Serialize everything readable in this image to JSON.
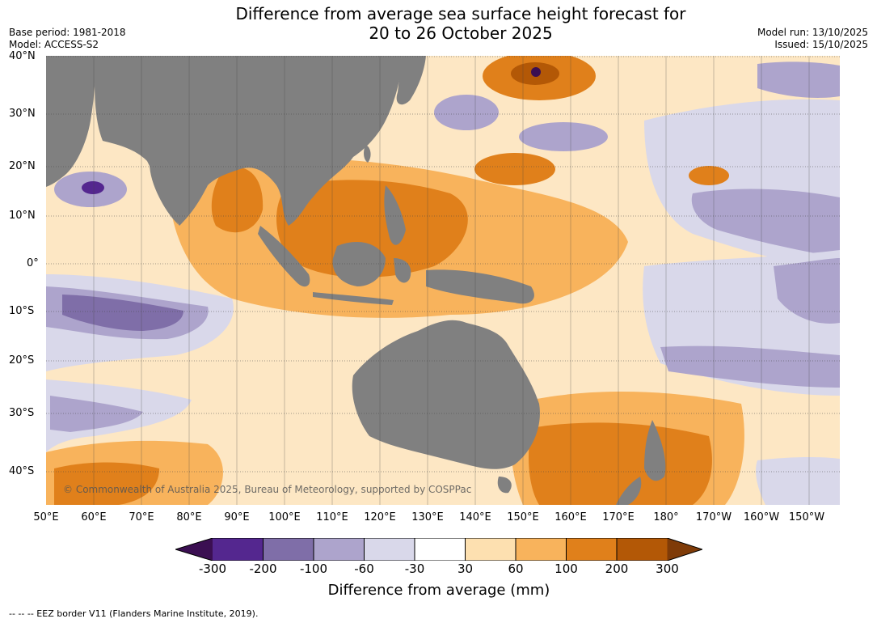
{
  "header": {
    "title_line1": "Difference from average sea surface height forecast for",
    "title_line2": "20 to 26 October 2025",
    "base_period": "Base period: 1981-2018",
    "model": "Model: ACCESS-S2",
    "model_run": "Model run: 13/10/2025",
    "issued": "Issued: 15/10/2025"
  },
  "map": {
    "lat_labels": [
      "40°N",
      "30°N",
      "20°N",
      "10°N",
      "0°",
      "10°S",
      "20°S",
      "30°S",
      "40°S"
    ],
    "lon_labels": [
      "50°E",
      "60°E",
      "70°E",
      "80°E",
      "90°E",
      "100°E",
      "110°E",
      "120°E",
      "130°E",
      "140°E",
      "150°E",
      "160°E",
      "170°E",
      "180°",
      "170°W",
      "160°W",
      "150°W"
    ],
    "copyright": "© Commonwealth of Australia 2025, Bureau of Meteorology, supported by COSPPac",
    "land_color": "#808080"
  },
  "legend": {
    "ticks": [
      "-300",
      "-200",
      "-100",
      "-60",
      "-30",
      "30",
      "60",
      "100",
      "200",
      "300"
    ],
    "colors": [
      "#3b0f52",
      "#54278f",
      "#7f6ea8",
      "#ada4cc",
      "#d9d8ea",
      "#ffffff",
      "#fde0b0",
      "#f8b35c",
      "#e0801b",
      "#b35806",
      "#7f3b08"
    ],
    "label": "Difference from average (mm)"
  },
  "footer": {
    "eez_note": "--  --  -- EEZ border V11 (Flanders Marine Institute, 2019)."
  }
}
